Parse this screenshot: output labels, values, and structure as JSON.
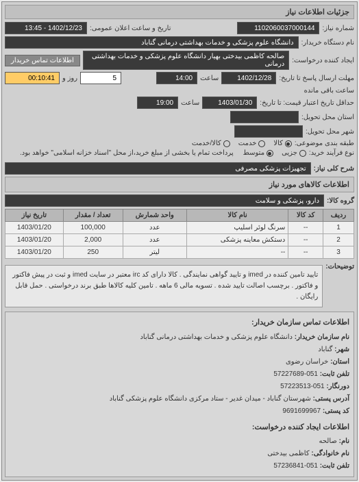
{
  "header": {
    "title": "جزئیات اطلاعات نیاز"
  },
  "top": {
    "need_no_label": "شماره نیاز:",
    "need_no": "1102060037000144",
    "announce_label": "تاریخ و ساعت اعلان عمومی:",
    "announce_value": "1402/12/23 - 13:45",
    "org_label": "نام دستگاه خریدار:",
    "org_value": "دانشگاه علوم پزشکی و خدمات بهداشتی درمانی گناباد",
    "creator_label": "ایجاد کننده درخواست:",
    "creator_value": "صالحه کاظمی بیدختی بهیار دانشگاه علوم پزشکی و خدمات بهداشتی درمانی",
    "contact_btn": "اطلاعات تماس خریدار",
    "deadline_reply_label": "مهلت ارسال پاسخ تا تاریخ:",
    "deadline_reply_date": "1402/12/28",
    "time_label": "ساعت",
    "deadline_reply_time": "14:00",
    "days_label": "روز و",
    "days_value": "5",
    "remain_label": "ساعت باقی مانده",
    "remain_value": "00:10:41",
    "valid_until_label": "حداقل تاریخ اعتبار قیمت: تا تاریخ:",
    "valid_until_date": "1403/01/30",
    "valid_until_time": "19:00",
    "delivery_province_label": "استان محل تحویل:",
    "delivery_city_label": "شهر محل تحویل:",
    "category_label": "طبقه بندی موضوعی:",
    "cat_kala": "کالا",
    "cat_khadmat": "کالا/خدمت",
    "cat_service": "خدمت",
    "buy_type_label": "نوع فرآیند خرید:",
    "buy_small": "جزیی",
    "buy_mid": "متوسط",
    "buy_note": "پرداخت تمام یا بخشی از مبلغ خرید،از محل \"اسناد خزانه اسلامی\" خواهد بود."
  },
  "needTitle": {
    "label": "شرح کلی نیاز:",
    "value": "تجهیزات پزشکی مصرفی"
  },
  "goodsSection": {
    "header": "اطلاعات کالاهای مورد نیاز",
    "group_label": "گروه کالا:",
    "group_value": "دارو، پزشکی و سلامت"
  },
  "table": {
    "cols": {
      "row": "ردیف",
      "code": "کد کالا",
      "name": "نام کالا",
      "unit": "واحد شمارش",
      "qty": "تعداد / مقدار",
      "date": "تاریخ نیاز"
    },
    "rows": [
      {
        "n": "1",
        "code": "--",
        "name": "سرنگ لوئر اسلیپ",
        "unit": "عدد",
        "qty": "100,000",
        "date": "1403/01/20"
      },
      {
        "n": "2",
        "code": "--",
        "name": "دستکش معاینه پزشکی",
        "unit": "عدد",
        "qty": "2,000",
        "date": "1403/01/20"
      },
      {
        "n": "3",
        "code": "--",
        "name": "--",
        "unit": "لیتر",
        "qty": "250",
        "date": "1403/01/20"
      }
    ]
  },
  "desc": {
    "label": "توضیحات:",
    "text": "تایید تامین کننده در imed و تایید گواهی نمایندگی . کالا دارای کد irc معتبر در سایت imed و ثبت در پیش فاکتور و فاکتور . برچسب اصالت تایید شده . تسویه مالی 6 ماهه . تامین کلیه کالاها طبق برند درخواستی . حمل قابل رایگان ."
  },
  "contact": {
    "section1_title": "اطلاعات تماس سازمان خریدار:",
    "org_name_label": "نام سازمان خریدار:",
    "org_name": "دانشگاه علوم پزشکی و خدمات بهداشتی درمانی گناباد",
    "city_label": "شهر:",
    "city": "گناباد",
    "province_label": "استان:",
    "province": "خراسان رضوی",
    "phone_label": "تلفن ثابت:",
    "phone": "051-57227689",
    "fax_label": "دورنگار:",
    "fax": "051-57223513",
    "address_label": "آدرس پستی:",
    "address": "شهرستان گناباد - میدان غدیر - ستاد مرکزی دانشگاه علوم پزشکی گناباد",
    "postcode_label": "کد پستی:",
    "postcode": "9691699967",
    "section2_title": "اطلاعات ایجاد کننده درخواست:",
    "name_label": "نام:",
    "name": "صالحه",
    "family_label": "نام خانوادگی:",
    "family": "کاظمی بیدختی",
    "phone2_label": "تلفن ثابت:",
    "phone2": "051-57236841"
  }
}
